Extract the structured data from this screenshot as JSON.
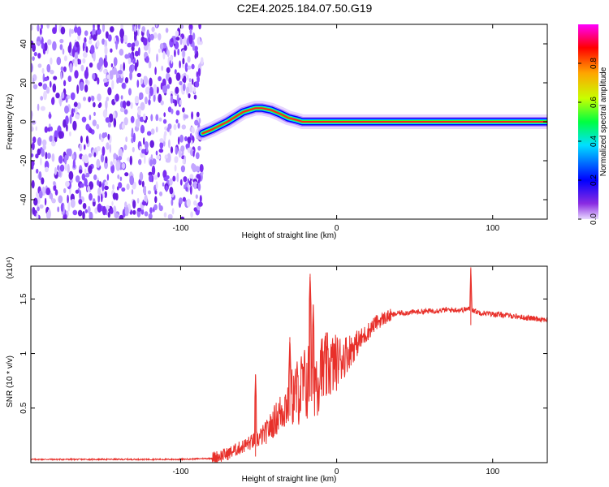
{
  "page_title": "C2E4.2025.184.07.50.G19",
  "chart_data": [
    {
      "type": "heatmap",
      "xlabel": "Height of straight line (km)",
      "ylabel": "Frequency (Hz)",
      "xlim": [
        -196,
        135
      ],
      "ylim": [
        -50,
        50
      ],
      "xticks": [
        -100,
        0,
        100
      ],
      "yticks": [
        -40,
        -20,
        0,
        20,
        40
      ],
      "colorbar": {
        "label": "Normalized spectral amplitude",
        "range": [
          0,
          1
        ],
        "ticks": [
          0.0,
          0.2,
          0.4,
          0.6,
          0.8
        ],
        "colormap": [
          "#e8d8ff",
          "#8a2be2",
          "#0000ff",
          "#00e0ff",
          "#00ff40",
          "#c8ff00",
          "#ffa500",
          "#ff0000",
          "#ff00ff"
        ]
      },
      "noise_region": {
        "x_from": -196,
        "x_to": -86
      },
      "signal_track": [
        {
          "x": -86,
          "f": -6
        },
        {
          "x": -80,
          "f": -4
        },
        {
          "x": -70,
          "f": 0
        },
        {
          "x": -60,
          "f": 5
        },
        {
          "x": -52,
          "f": 7
        },
        {
          "x": -48,
          "f": 7
        },
        {
          "x": -42,
          "f": 6
        },
        {
          "x": -36,
          "f": 4
        },
        {
          "x": -31,
          "f": 2
        },
        {
          "x": -26,
          "f": 1
        },
        {
          "x": -22,
          "f": 0
        },
        {
          "x": 0,
          "f": 0
        },
        {
          "x": 50,
          "f": 0
        },
        {
          "x": 100,
          "f": 0
        },
        {
          "x": 135,
          "f": 0
        }
      ]
    },
    {
      "type": "line",
      "xlabel": "Height of straight line (km)",
      "ylabel": "SNR (10 * v/v)",
      "y_multiplier": "(x10⁴)",
      "xlim": [
        -196,
        135
      ],
      "ylim": [
        0,
        1.8
      ],
      "xticks": [
        -100,
        0,
        100
      ],
      "yticks": [
        0.5,
        1.0,
        1.5
      ],
      "series": [
        {
          "color": "#e8302a",
          "points": [
            [
              -196,
              0.03
            ],
            [
              -150,
              0.03
            ],
            [
              -100,
              0.03
            ],
            [
              -80,
              0.04
            ],
            [
              -70,
              0.08
            ],
            [
              -60,
              0.15
            ],
            [
              -50,
              0.22
            ],
            [
              -45,
              0.28
            ],
            [
              -40,
              0.38
            ],
            [
              -35,
              0.48
            ],
            [
              -30,
              0.58
            ],
            [
              -25,
              0.65
            ],
            [
              -20,
              0.72
            ],
            [
              -15,
              0.78
            ],
            [
              -10,
              0.82
            ],
            [
              -5,
              0.88
            ],
            [
              0,
              0.92
            ],
            [
              5,
              0.98
            ],
            [
              10,
              1.05
            ],
            [
              15,
              1.12
            ],
            [
              20,
              1.2
            ],
            [
              25,
              1.28
            ],
            [
              30,
              1.32
            ],
            [
              35,
              1.35
            ],
            [
              40,
              1.37
            ],
            [
              50,
              1.38
            ],
            [
              60,
              1.39
            ],
            [
              70,
              1.4
            ],
            [
              80,
              1.4
            ],
            [
              86,
              1.41
            ],
            [
              90,
              1.38
            ],
            [
              100,
              1.36
            ],
            [
              110,
              1.35
            ],
            [
              120,
              1.33
            ],
            [
              135,
              1.31
            ]
          ],
          "spikes": [
            {
              "x": -52,
              "y": 0.81
            },
            {
              "x": -30,
              "y": 1.15
            },
            {
              "x": -17,
              "y": 1.73
            },
            {
              "x": -15,
              "y": 1.45
            },
            {
              "x": -10,
              "y": 1.05
            },
            {
              "x": 86,
              "y": 1.79
            }
          ]
        }
      ]
    }
  ]
}
